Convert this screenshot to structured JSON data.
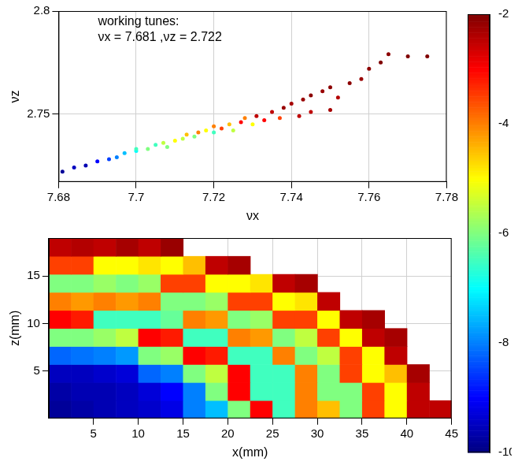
{
  "chart_data": [
    {
      "type": "scatter",
      "x_label": "νx",
      "y_label": "νz",
      "annotations": [
        "working tunes:",
        "νx = 7.681 ,νz = 2.722"
      ],
      "xlim": [
        7.68,
        7.78
      ],
      "xticks": [
        7.68,
        7.7,
        7.72,
        7.74,
        7.76,
        7.78
      ],
      "ylim": [
        2.717,
        2.8
      ],
      "yticks": [
        2.75,
        2.8
      ],
      "grid": true,
      "x": [
        7.681,
        7.684,
        7.687,
        7.69,
        7.693,
        7.695,
        7.697,
        7.7,
        7.7,
        7.703,
        7.705,
        7.707,
        7.708,
        7.71,
        7.712,
        7.713,
        7.715,
        7.716,
        7.718,
        7.72,
        7.72,
        7.722,
        7.724,
        7.725,
        7.727,
        7.728,
        7.73,
        7.731,
        7.733,
        7.735,
        7.737,
        7.738,
        7.74,
        7.742,
        7.743,
        7.745,
        7.745,
        7.748,
        7.75,
        7.75,
        7.752,
        7.755,
        7.758,
        7.76,
        7.763,
        7.765,
        7.77,
        7.775
      ],
      "y": [
        2.722,
        2.724,
        2.725,
        2.727,
        2.728,
        2.729,
        2.731,
        2.732,
        2.733,
        2.733,
        2.735,
        2.736,
        2.734,
        2.737,
        2.738,
        2.74,
        2.739,
        2.741,
        2.742,
        2.741,
        2.744,
        2.743,
        2.745,
        2.742,
        2.746,
        2.748,
        2.745,
        2.749,
        2.747,
        2.751,
        2.748,
        2.753,
        2.755,
        2.749,
        2.757,
        2.759,
        2.751,
        2.761,
        2.752,
        2.763,
        2.758,
        2.765,
        2.767,
        2.772,
        2.775,
        2.779,
        2.778,
        2.778
      ],
      "diffusion": [
        -9.8,
        -9.5,
        -9.6,
        -9,
        -8.5,
        -8,
        -7.5,
        -7,
        -6.5,
        -6,
        -6.5,
        -5.5,
        -6,
        -5,
        -5.5,
        -4.5,
        -6,
        -4,
        -5,
        -6.5,
        -4,
        -3.5,
        -4.5,
        -5.5,
        -3,
        -4,
        -5,
        -2.5,
        -3,
        -2.5,
        -3.5,
        -2.2,
        -2.3,
        -2.5,
        -2.2,
        -2.1,
        -2.5,
        -2.2,
        -2.3,
        -2.1,
        -2.4,
        -2.1,
        -2.2,
        -2.1,
        -2,
        -2.1,
        -2,
        -2
      ]
    },
    {
      "type": "heatmap",
      "x_label": "x(mm)",
      "y_label": "z(mm)",
      "xlim": [
        0,
        45
      ],
      "xticks": [
        5,
        10,
        15,
        20,
        25,
        30,
        35,
        40,
        45
      ],
      "ylim": [
        0,
        19
      ],
      "yticks": [
        5,
        10,
        15
      ],
      "grid": true,
      "x_bins": [
        0,
        2.5,
        5,
        7.5,
        10,
        12.5,
        15,
        17.5,
        20,
        22.5,
        25,
        27.5,
        30,
        32.5,
        35,
        37.5,
        40,
        42.5,
        45
      ],
      "y_bins": [
        0,
        1.9,
        3.8,
        5.7,
        7.6,
        9.5,
        11.4,
        13.3,
        15.2,
        17.1,
        19
      ],
      "cells": [
        [
          -9.8,
          -9.7,
          -9.6,
          -9.5,
          -9.4,
          -9.2,
          -8,
          -7.5,
          -6,
          -3,
          -6.5,
          -4,
          -4.5,
          -6,
          -3.5,
          -5,
          -2.5,
          -2.5
        ],
        [
          -9.7,
          -9.6,
          -9.6,
          -9.5,
          -9.3,
          -9,
          -8,
          -6,
          -3,
          -6.5,
          -6.5,
          -4,
          -6,
          -6,
          -3.5,
          -5,
          -2.5,
          null
        ],
        [
          -9.5,
          -9.5,
          -9.4,
          -9.3,
          -8.2,
          -8,
          -6,
          -5.5,
          -3,
          -6.5,
          -6.5,
          -4,
          -6,
          -3.5,
          -5,
          -4.5,
          -2.3,
          null
        ],
        [
          -8.2,
          -8.1,
          -8,
          -7.8,
          -6,
          -5.8,
          -3,
          -3.2,
          -6.5,
          -6.5,
          -4,
          -6,
          -5.5,
          -3.5,
          -5,
          -2.5,
          null,
          null
        ],
        [
          -6,
          -6,
          -5.8,
          -5.5,
          -3,
          -3.2,
          -6.5,
          -6.5,
          -4,
          -4.2,
          -6,
          -5.5,
          -3.5,
          -5,
          -2.5,
          -2.3,
          null,
          null
        ],
        [
          -3,
          -3.2,
          -6.5,
          -6.5,
          -6.5,
          -6.2,
          -4,
          -4.2,
          -6,
          -5.8,
          -3.5,
          -3.5,
          -5,
          -2.5,
          -2.3,
          null,
          null,
          null
        ],
        [
          -4,
          -4.2,
          -4,
          -4.2,
          -4,
          -6,
          -6,
          -5.8,
          -3.5,
          -3.5,
          -5,
          -4.8,
          -2.5,
          null,
          null,
          null,
          null,
          null
        ],
        [
          -6,
          -6,
          -5.8,
          -6,
          -5.8,
          -3.5,
          -3.5,
          -5,
          -5,
          -4.8,
          -2.5,
          -2.3,
          null,
          null,
          null,
          null,
          null,
          null
        ],
        [
          -3.5,
          -3.5,
          -5,
          -5,
          -4.8,
          -5,
          -4.5,
          -2.5,
          -2.3,
          null,
          null,
          null,
          null,
          null,
          null,
          null,
          null,
          null
        ],
        [
          -2.5,
          -2.4,
          -2.5,
          -2.3,
          -2.5,
          -2.2,
          null,
          null,
          null,
          null,
          null,
          null,
          null,
          null,
          null,
          null,
          null,
          null
        ]
      ],
      "colorbar": {
        "range": [
          -10,
          -2
        ],
        "ticks": [
          -10,
          -8,
          -6,
          -4,
          -2
        ]
      }
    }
  ]
}
